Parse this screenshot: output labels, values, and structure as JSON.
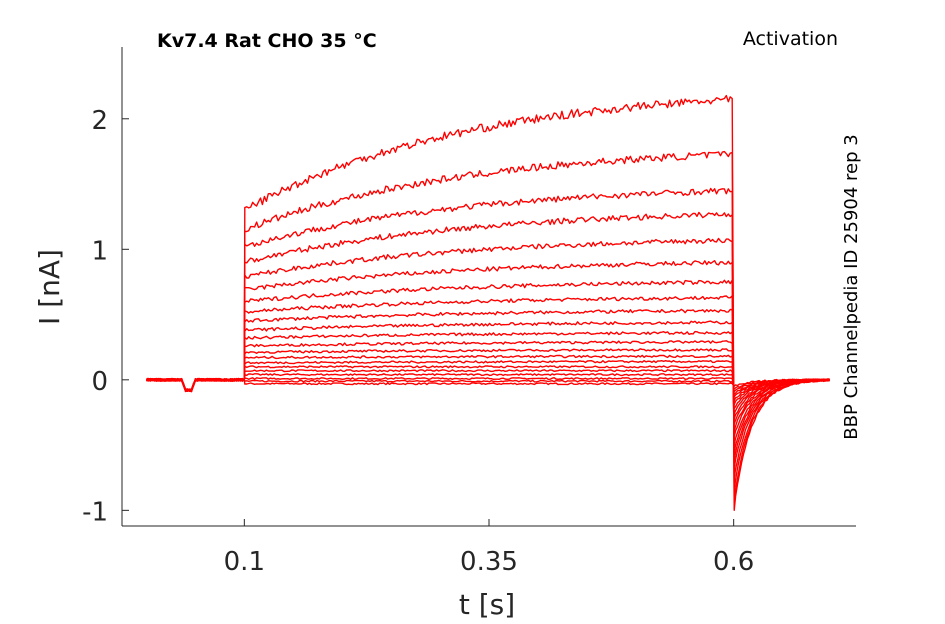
{
  "chart_data": {
    "type": "line",
    "title": "Kv7.4  Rat  CHO  35 °C",
    "corner_label": "Activation",
    "side_label": "BBP Channelpedia ID 25904 rep 3",
    "xlabel": "t [s]",
    "ylabel": "I [nA]",
    "xlim": [
      -0.025,
      0.725
    ],
    "ylim": [
      -1.12,
      2.55
    ],
    "xticks": [
      0.1,
      0.35,
      0.6
    ],
    "xtick_labels": [
      "0.1",
      "0.35",
      "0.6"
    ],
    "yticks": [
      -1,
      0,
      1,
      2
    ],
    "ytick_labels": [
      "-1",
      "0",
      "1",
      "2"
    ],
    "grid": false,
    "line_color": "#ff0000",
    "pulse_start": 0.1,
    "pulse_end": 0.6,
    "record_start": 0.0,
    "record_end": 0.7,
    "steady_levels": [
      -0.03,
      -0.01,
      0.01,
      0.04,
      0.07,
      0.1,
      0.14,
      0.18,
      0.23,
      0.29,
      0.36,
      0.44,
      0.53,
      0.63,
      0.75,
      0.9,
      1.07,
      1.27,
      1.45,
      1.73,
      2.15
    ],
    "onset_levels": [
      -0.03,
      -0.01,
      0.01,
      0.04,
      0.07,
      0.1,
      0.13,
      0.17,
      0.21,
      0.26,
      0.32,
      0.38,
      0.45,
      0.52,
      0.6,
      0.69,
      0.79,
      0.9,
      1.02,
      1.15,
      1.3
    ],
    "tail_peaks": [
      -0.05,
      -0.07,
      -0.09,
      -0.11,
      -0.13,
      -0.16,
      -0.19,
      -0.22,
      -0.26,
      -0.3,
      -0.34,
      -0.39,
      -0.44,
      -0.5,
      -0.56,
      -0.62,
      -0.68,
      -0.76,
      -0.85,
      -0.93,
      -1.0
    ]
  }
}
